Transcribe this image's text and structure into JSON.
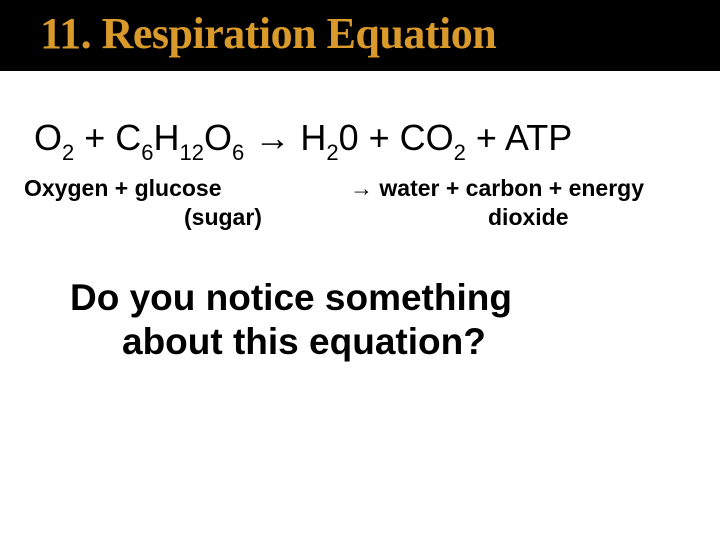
{
  "slide": {
    "title": "11. Respiration Equation",
    "title_color": "#d99a2b",
    "title_bg": "#000000",
    "title_fontsize": 44,
    "equation": {
      "parts": [
        {
          "t": "O",
          "sub": false
        },
        {
          "t": "2",
          "sub": true
        },
        {
          "t": " + C",
          "sub": false
        },
        {
          "t": "6",
          "sub": true
        },
        {
          "t": "H",
          "sub": false
        },
        {
          "t": "12",
          "sub": true
        },
        {
          "t": "O",
          "sub": false
        },
        {
          "t": "6",
          "sub": true
        },
        {
          "t": "  → H",
          "sub": false,
          "arrow": true
        },
        {
          "t": "2",
          "sub": true
        },
        {
          "t": "0 + CO",
          "sub": false
        },
        {
          "t": "2",
          "sub": true
        },
        {
          "t": " + ATP",
          "sub": false
        }
      ],
      "fontsize": 36,
      "sub_fontsize": 22
    },
    "labels": {
      "left_line1": "Oxygen + glucose",
      "left_line2": "(sugar)",
      "right_line1_arrow": "→",
      "right_line1_rest": " water + carbon + energy",
      "right_line2": "dioxide",
      "fontsize": 23
    },
    "question": {
      "line1": "Do you notice something",
      "line2": "about this equation?",
      "fontsize": 37
    },
    "background_color": "#ffffff"
  }
}
